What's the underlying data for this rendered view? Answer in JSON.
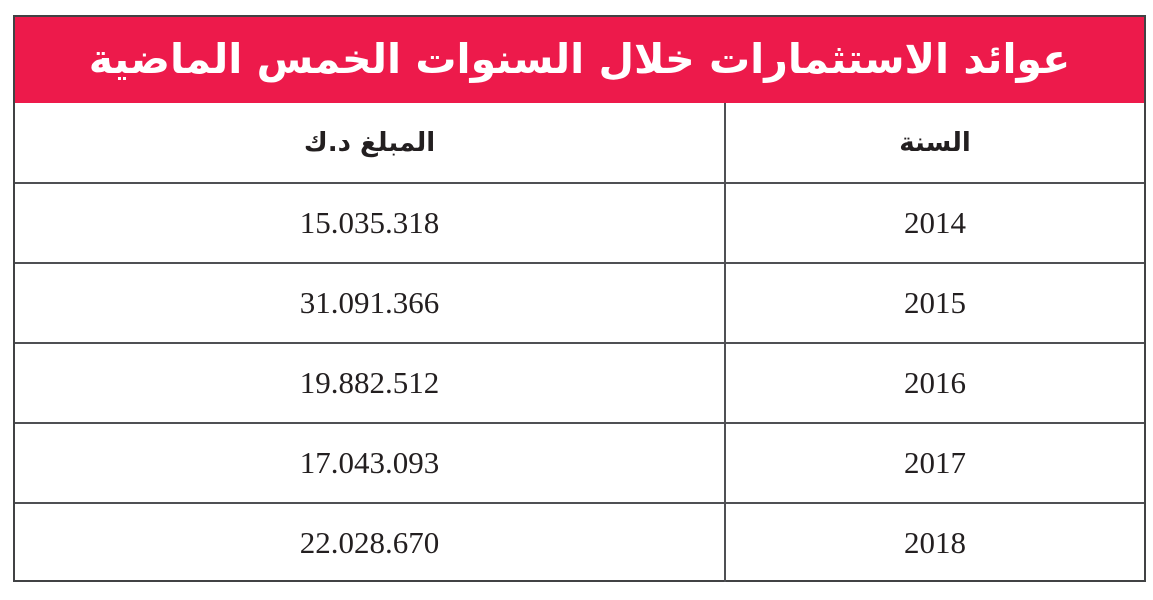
{
  "table": {
    "title": "عوائد الاستثمارات خلال السنوات الخمس الماضية",
    "columns": {
      "year": "السنة",
      "amount": "المبلغ د.ك"
    },
    "rows": [
      {
        "year": "2014",
        "amount": "15.035.318"
      },
      {
        "year": "2015",
        "amount": "31.091.366"
      },
      {
        "year": "2016",
        "amount": "19.882.512"
      },
      {
        "year": "2017",
        "amount": "17.043.093"
      },
      {
        "year": "2018",
        "amount": "22.028.670"
      }
    ],
    "colors": {
      "title_background": "#ED1A4B",
      "title_text": "#FFFFFF",
      "border": "#4F5054",
      "cell_text": "#231F20",
      "cell_background": "#FFFFFF"
    }
  },
  "chart_data": {
    "type": "table",
    "title": "عوائد الاستثمارات خلال السنوات الخمس الماضية",
    "columns": [
      "السنة",
      "المبلغ د.ك"
    ],
    "categories": [
      "2014",
      "2015",
      "2016",
      "2017",
      "2018"
    ],
    "values": [
      15035318,
      31091366,
      19882512,
      17043093,
      22028670
    ],
    "unit": "د.ك",
    "layout": "rtl two-column table, red title band spanning both columns, year column on the right"
  }
}
